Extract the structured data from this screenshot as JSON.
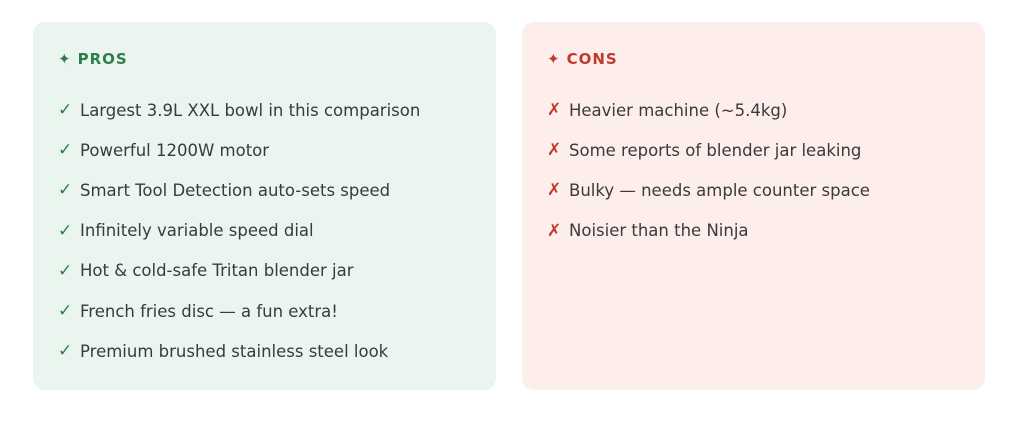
{
  "pros": {
    "title": "PROS",
    "color": "#2e7d4f",
    "items": [
      "Largest 3.9L XXL bowl in this comparison",
      "Powerful 1200W motor",
      "Smart Tool Detection auto-sets speed",
      "Infinitely variable speed dial",
      "Hot & cold-safe Tritan blender jar",
      "French fries disc — a fun extra!",
      "Premium brushed stainless steel look"
    ]
  },
  "cons": {
    "title": "CONS",
    "color": "#c0392b",
    "items": [
      "Heavier machine (~5.4kg)",
      "Some reports of blender jar leaking",
      "Bulky — needs ample counter space",
      "Noisier than the Ninja"
    ]
  },
  "icons": {
    "header": "✦",
    "check": "✓",
    "cross": "✗"
  }
}
